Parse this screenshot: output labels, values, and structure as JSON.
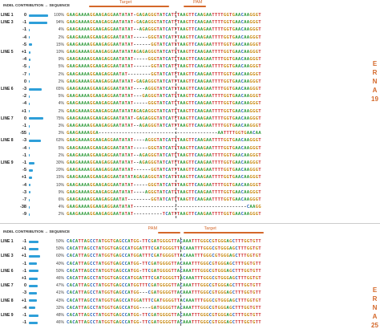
{
  "colors": {
    "A": "#2e9a3a",
    "C": "#2a62b8",
    "G": "#c88a12",
    "T": "#cf2f2f",
    "bar": "#2e9fd9",
    "accent": "#d4682a"
  },
  "panels": [
    {
      "id": "ernai9",
      "top": 0,
      "header": "INDEL   CONTRIBUTION → SEQUENCE",
      "target_label": "Target",
      "pam_label": "PAM",
      "side_label": "ERNA19",
      "rows": [
        {
          "line": "LINE 1",
          "indel": "0",
          "pct": "100%",
          "seq": "GAAGAAAAGGAAGAGGAATATAT-:GAGAGGGTATCATTTAAGTTCAAGAATTTTGGTGAACAAGGGTTTCCTAT"
        },
        {
          "line": "LINE 3",
          "indel": "-1",
          "pct": "94%",
          "seq": "GAAGAAAAGGAAGAGGAATATAT-:GAGAGGGTATCATTTAAGTTCAAGAATTTTGGTGAACAAGGGTTTCCTAT"
        },
        {
          "line": "",
          "indel": "-1",
          "pct": "4%",
          "seq": "GAAGAAAAGGAAGAGGAATATAT-:-AGAGGGTATCATTTAAGTTCAAGAATTTTGGTGAACAAGGGTTTCCTAT"
        },
        {
          "line": "",
          "indel": "-4",
          "pct": "2%",
          "seq": "GAAGAAAAGGAAGAGGAATATAT-:----GGGTATCATTTAAGTTCAAGAATTTTGGTGAACAAGGGTTTCCTAT"
        },
        {
          "line": "",
          "indel": "-5",
          "pct": "15%",
          "seq": "GAAGAAAAGGAAGAGGAATATAT-:-----GGTATCATTTAAGTTCAAGAATTTTGGTGAACAAGGGTTTCCTAT"
        },
        {
          "line": "LINE 5",
          "indel": "+1",
          "pct": "10%",
          "seq": "GAAGAAAAGGAAGAGGAATATATA:GAGAGGGTATCATTTAAGTTCAAGAATTTTGGTGAACAAGGGTTTCCTAT"
        },
        {
          "line": "",
          "indel": "-4",
          "pct": "9%",
          "seq": "GAAGAAAAGGAAGAGGAATATAT-:----GGGTATCATTTAAGTTCAAGAATTTTGGTGAACAAGGGTTTCCTAT"
        },
        {
          "line": "",
          "indel": "-5",
          "pct": "5%",
          "seq": "GAAGAAAAGGAAGAGGAATATAT-:-----GGTATCATTTAAGTTCAAGAATTTTGGTGAACAAGGGTTTCCTAT"
        },
        {
          "line": "",
          "indel": "-7",
          "pct": "2%",
          "seq": "GAAGAAAAGGAAGAGGAATAT---:-----GGTATCATTTAAGTTCAAGAATTTTGGTGAACAAGGGTTTCCTAT"
        },
        {
          "line": "",
          "indel": "0",
          "pct": "2%",
          "seq": "GAAGAAAAGGAAGAGGAATATAT-:GAGAGGGTATCATTTAAGTTCAAGAATTTTGGTGAACAAGGGTTTCCTAT"
        },
        {
          "line": "LINE 6",
          "indel": "-3",
          "pct": "65%",
          "seq": "GAAGAAAAGGAAGAGGAATATAT-:---AGGGTATCATTTAAGTTCAAGAATTTTGGTGAACAAGGGTTTCCTAT"
        },
        {
          "line": "",
          "indel": "-2",
          "pct": "5%",
          "seq": "GAAGAAAAGGAAGAGGAATATAT-:--GAGGGTATCATTTAAGTTCAAGAATTTTGGTGAACAAGGGTTTCCTAT"
        },
        {
          "line": "",
          "indel": "-4",
          "pct": "4%",
          "seq": "GAAGAAAAGGAAGAGGAATATAT-:----GGGTATCATTTAAGTTCAAGAATTTTGGTGAACAAGGGTTTCCTAT"
        },
        {
          "line": "",
          "indel": "+1",
          "pct": "2%",
          "seq": "GAAGAAAAGGAAGAGGAATATATA:GAGAGGGTATCATTTAAGTTCAAGAATTTTGGTGAACAAGGGTTTCCTAT"
        },
        {
          "line": "LINE 7",
          "indel": "0",
          "pct": "75%",
          "seq": "GAAGAAAAGGAAGAGGAATATAT-:GAGAGGGTATCATTTAAGTTCAAGAATTTTGGTGAACAAGGGTTTCCTAT"
        },
        {
          "line": "",
          "indel": "-1",
          "pct": "3%",
          "seq": "GAAGAAAAGGAAGAGGAATATAT-:-AGAGGGTATCATTTAAGTTCAAGAATTTTGGTGAACAAGGGTTTCCTAT"
        },
        {
          "line": "",
          "indel": "-55",
          "pct": "3%",
          "seq": "GAAGAAAAGGA-------------:----------------------------AATTTTGGTGAACAAGGGTTTCCTAT"
        },
        {
          "line": "LINE 8",
          "indel": "-3",
          "pct": "63%",
          "seq": "GAAGAAAAGGAAGAGGAATATAT-:---AGGGTATCATTTAAGTTCAAGAATTTTGGTGAACAAGGGTTTCCTAT"
        },
        {
          "line": "",
          "indel": "-4",
          "pct": "5%",
          "seq": "GAAGAAAAGGAAGAGGAATATAT-:----GGGTATCATTTAAGTTCAAGAATTTTGGTGAACAAGGGTTTCCTAT"
        },
        {
          "line": "",
          "indel": "-1",
          "pct": "2%",
          "seq": "GAAGAAAAGGAAGAGGAATATAT-:-AGAGGGTATCATTTAAGTTCAAGAATTTTGGTGAACAAGGGTTTCCTAT"
        },
        {
          "line": "LINE 9",
          "indel": "-1",
          "pct": "30%",
          "seq": "GAAGAAAAGGAAGAGGAATATAT-:-AGAGGGTATCATTTAAGTTCAAGAATTTTGGTGAACAAGGGTTTCCTAT"
        },
        {
          "line": "",
          "indel": "-5",
          "pct": "20%",
          "seq": "GAAGAAAAGGAAGAGGAATATAT-:-----GGTATCATTTAAGTTCAAGAATTTTGGTGAACAAGGGTTTCCTAT"
        },
        {
          "line": "",
          "indel": "+1",
          "pct": "15%",
          "seq": "GAAGAAAAGGAAGAGGAATATATA:GAGAGGGTATCATTTAAGTTCAAGAATTTTGGTGAACAAGGGTTTCCTAT"
        },
        {
          "line": "",
          "indel": "-4",
          "pct": "10%",
          "seq": "GAAGAAAAGGAAGAGGAATATAT-:----GGGTATCATTTAAGTTCAAGAATTTTGGTGAACAAGGGTTTCCTAT"
        },
        {
          "line": "",
          "indel": "-3",
          "pct": "9%",
          "seq": "GAAGAAAAGGAAGAGGAATATAT-:---AGGGTATCATTTAAGTTCAAGAATTTTGGTGAACAAGGGTTTCCTAT"
        },
        {
          "line": "",
          "indel": "-7",
          "pct": "6%",
          "seq": "GAAGAAAAGGAAGAGGAATAT---:-----GGTATCATTTAAGTTCAAGAATTTTGGTGAACAAGGGTTTCCTAT"
        },
        {
          "line": "",
          "indel": "-38",
          "pct": "4%",
          "seq": "GAAGAAAAGGAAGAGGAATATAT-:--------------------------------------CAAGGGTTTCCTAT"
        },
        {
          "line": "",
          "indel": "-9",
          "pct": "2%",
          "seq": "GAAGAAAAGGAAGAGGAATATAT-:---------TCATTTAAGTTCAAGAATTTTGGTGAACAAGGGTTTCCTAT"
        }
      ]
    },
    {
      "id": "ernai25",
      "top": 282,
      "header": "INDEL   CONTRIBUTION → SEQUENCE",
      "target_label": "Target",
      "pam_label": "PAM",
      "side_label": "ERNA25",
      "rows": [
        {
          "line": "LINE 1",
          "indel": "-1",
          "pct": "50%",
          "seq": "CACATTAGCCTATGGTGAGCCATGG:-TTCGATGGGGTTACAAATTTGGGCGTGGGAGCTTTGGTGTTACACA"
        },
        {
          "line": "",
          "indel": "+1",
          "pct": "50%",
          "seq": "CACATTAGCCTATGGTGAGCCATGGA:TTTCGATGGGGTTACAAATTTGGGCGTGGGAGCTTTGGTGTTACACA"
        },
        {
          "line": "LINE 3",
          "indel": "+1",
          "pct": "60%",
          "seq": "CACATTAGCCTATGGTGAGCCATGGA:TTTCGATGGGGTTACAAATTTGGGCGTGGGAGCTTTGGTGTTACACA"
        },
        {
          "line": "",
          "indel": "-1",
          "pct": "40%",
          "seq": "CACATTAGCCTATGGTGAGCCATGG:-TTCGATGGGGTTACAAATTTGGGCGTGGGAGCTTTGGTGTTACACA"
        },
        {
          "line": "LINE 6",
          "indel": "-1",
          "pct": "50%",
          "seq": "CACATTAGCCTATGGTGAGCCATGG:-TTCGATGGGGTTACAAATTTGGGCGTGGGAGCTTTGGTGTTACACA"
        },
        {
          "line": "",
          "indel": "+1",
          "pct": "46%",
          "seq": "CACATTAGCCTATGGTGAGCCATGGA:TTTCGATGGGGTTACAAATTTGGGCGTGGGAGCTTTGGTGTTACACA"
        },
        {
          "line": "LINE 7",
          "indel": "0",
          "pct": "47%",
          "seq": "CACATTAGCCTATGGTGAGCCATGG:TTTCGATGGGGTTACAAATTTGGGCGTGGGAGCTTTGGTGTTACACA"
        },
        {
          "line": "",
          "indel": "-3",
          "pct": "41%",
          "seq": "CACATTAGCCTATGGTGAGCCATGG:---CGATGGGGTTACAAATTTGGGCGTGGGAGCTTTGGTGTTACACA"
        },
        {
          "line": "LINE 8",
          "indel": "+1",
          "pct": "43%",
          "seq": "CACATTAGCCTATGGTGAGCCATGGA:TTTCGATGGGGTTACAAATTTGGGCGTGGGAGCTTTGGTGTTACACA"
        },
        {
          "line": "",
          "indel": "-4",
          "pct": "32%",
          "seq": "CACATTAGCCTATGGTGAGCCATGG:----GATGGGGTTACAAATTTGGGCGTGGGAGCTTTGGTGTTACACA"
        },
        {
          "line": "LINE 9",
          "indel": "-1",
          "pct": "48%",
          "seq": "CACATTAGCCTATGGTGAGCCATGG:-TTCGATGGGGTTACAAATTTGGGCGTGGGAGCTTTGGTGTTACACA"
        },
        {
          "line": "",
          "indel": "-1",
          "pct": "46%",
          "seq": "CACATTAGCCTATGGTGAGCCATGG:-TTCGATGGGGTTACAAATTTGGGCGTGGGAGCTTTGGTGTTACACA"
        }
      ]
    }
  ]
}
